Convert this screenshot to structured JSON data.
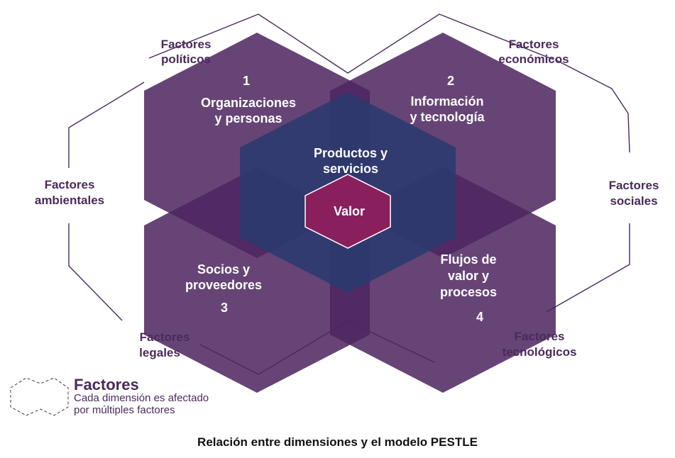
{
  "diagram": {
    "dimensions": [
      {
        "number": "1",
        "line1": "Organizaciones",
        "line2": "y personas"
      },
      {
        "number": "2",
        "line1": "Información",
        "line2": "y tecnología"
      },
      {
        "number": "3",
        "line1": "Socios y",
        "line2": "proveedores"
      },
      {
        "number": "4",
        "line1": "Flujos de",
        "line2": "valor y",
        "line3": "procesos"
      }
    ],
    "center": {
      "line1": "Productos y",
      "line2": "servicios",
      "core": "Valor"
    },
    "factors": {
      "politicos": {
        "line1": "Factores",
        "line2": "políticos"
      },
      "economicos": {
        "line1": "Factores",
        "line2": "económicos"
      },
      "ambientales": {
        "line1": "Factores",
        "line2": "ambientales"
      },
      "sociales": {
        "line1": "Factores",
        "line2": "sociales"
      },
      "legales": {
        "line1": "Factores",
        "line2": "legales"
      },
      "tecnologicos": {
        "line1": "Factores",
        "line2": "tecnológicos"
      }
    },
    "colors": {
      "dimension_fill": "#4e2560",
      "center_fill": "#2a3a6e",
      "core_fill": "#8a1f5e",
      "factor_text": "#4a2a5c"
    }
  },
  "legend": {
    "title": "Factores",
    "line1": "Cada dimensión es afectado",
    "line2": "por múltiples factores"
  },
  "caption": "Relación entre dimensiones y el modelo PESTLE"
}
